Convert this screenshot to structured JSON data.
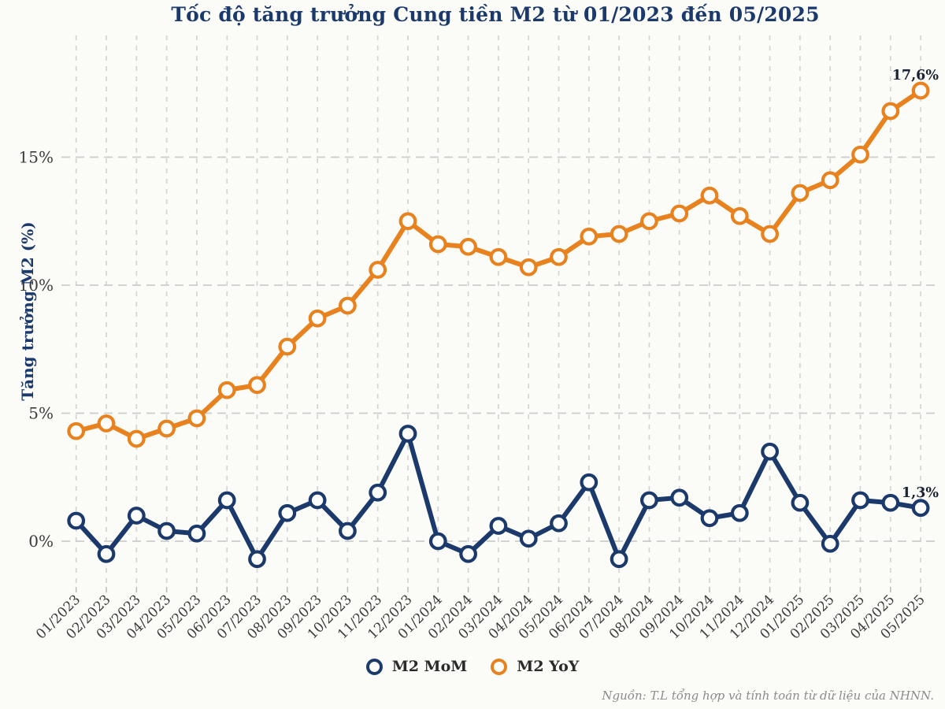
{
  "source_note": "Nguồn: T.L tổng hợp và tính toán từ dữ liệu của NHNN.",
  "colors": {
    "title": "#1b3a6b",
    "navy": "#1b3a6b",
    "orange": "#e8821e",
    "grid": "#d4d4d4",
    "tick_text": "#3b3b3b",
    "annotation_text": "#1a2233",
    "marker_fill": "#fdfdfc",
    "background": "#fbfbf8"
  },
  "chart_data": {
    "type": "line",
    "title": "Tốc độ tăng trưởng Cung tiền M2 từ 01/2023 đến 05/2025",
    "xlabel": "",
    "ylabel": "Tăng trưởng M2 (%)",
    "ylim": [
      -1.8,
      19.8
    ],
    "grid": "dashed-both",
    "legend_position": "bottom-center",
    "marker": "open-circle",
    "categories": [
      "01/2023",
      "02/2023",
      "03/2023",
      "04/2023",
      "05/2023",
      "06/2023",
      "07/2023",
      "08/2023",
      "09/2023",
      "10/2023",
      "11/2023",
      "12/2023",
      "01/2024",
      "02/2024",
      "03/2024",
      "04/2024",
      "05/2024",
      "06/2024",
      "07/2024",
      "08/2024",
      "09/2024",
      "10/2024",
      "11/2024",
      "12/2024",
      "01/2025",
      "02/2025",
      "03/2025",
      "04/2025",
      "05/2025"
    ],
    "yticks": {
      "values": [
        0,
        5,
        10,
        15
      ],
      "labels": [
        "0%",
        "5%",
        "10%",
        "15%"
      ]
    },
    "series": [
      {
        "name": "M2 MoM",
        "color": "#1b3a6b",
        "values": [
          0.8,
          -0.5,
          1.0,
          0.4,
          0.3,
          1.6,
          -0.7,
          1.1,
          1.6,
          0.4,
          1.9,
          4.2,
          0.0,
          -0.5,
          0.6,
          0.1,
          0.7,
          2.3,
          -0.7,
          1.6,
          1.7,
          0.9,
          1.1,
          3.5,
          1.5,
          -0.1,
          1.6,
          1.5,
          1.3
        ]
      },
      {
        "name": "M2 YoY",
        "color": "#e8821e",
        "values": [
          4.3,
          4.6,
          4.0,
          4.4,
          4.8,
          5.9,
          6.1,
          7.6,
          8.7,
          9.2,
          10.6,
          12.5,
          11.6,
          11.5,
          11.1,
          10.7,
          11.1,
          11.9,
          12.0,
          12.5,
          12.8,
          13.5,
          12.7,
          12.0,
          13.6,
          14.1,
          15.1,
          16.8,
          17.6
        ]
      }
    ],
    "annotations": [
      {
        "series": "M2 YoY",
        "category": "05/2025",
        "text": "17,6%"
      },
      {
        "series": "M2 MoM",
        "category": "05/2025",
        "text": "1,3%"
      }
    ]
  }
}
